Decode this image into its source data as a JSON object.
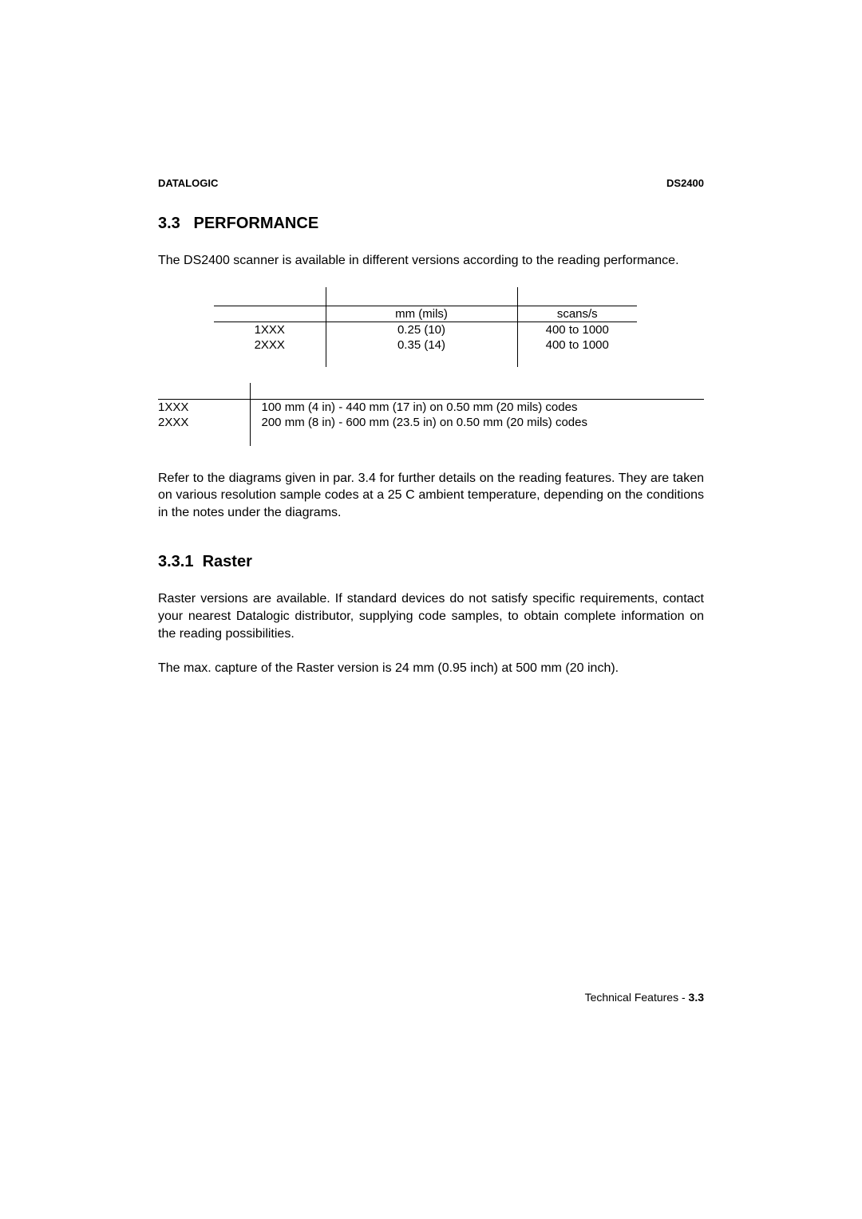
{
  "header": {
    "left": "DATALOGIC",
    "right": "DS2400"
  },
  "section": {
    "num": "3.3",
    "title": "PERFORMANCE"
  },
  "intro": "The DS2400 scanner is available in different versions according to the reading performance.",
  "table1": {
    "head": {
      "col2": "mm (mils)",
      "col3": "scans/s"
    },
    "rows": [
      {
        "version": "1XXX",
        "res": "0.25 (10)",
        "speed": "400 to 1000"
      },
      {
        "version": "2XXX",
        "res": "0.35 (14)",
        "speed": "400 to 1000"
      }
    ]
  },
  "table2": {
    "rows": [
      {
        "version": "1XXX",
        "range": "100 mm (4 in) - 440 mm (17 in) on 0.50 mm (20 mils) codes"
      },
      {
        "version": "2XXX",
        "range": "200 mm (8 in) - 600 mm (23.5 in) on 0.50 mm (20 mils) codes"
      }
    ]
  },
  "para_ref": "Refer to the diagrams given in par. 3.4 for further details on the reading features. They are taken on various resolution sample codes at a 25  C ambient temperature, depending on the conditions in the notes under the diagrams.",
  "subsection": {
    "num": "3.3.1",
    "title": "Raster"
  },
  "raster_p1": "Raster versions are available. If standard devices do not satisfy specific requirements, contact your nearest Datalogic distributor, supplying code samples, to obtain complete information on the reading possibilities.",
  "raster_p2": "The max. capture of the Raster version is 24 mm (0.95 inch) at 500 mm (20 inch).",
  "footer": {
    "text": "Technical Features - ",
    "page": "3.3"
  }
}
